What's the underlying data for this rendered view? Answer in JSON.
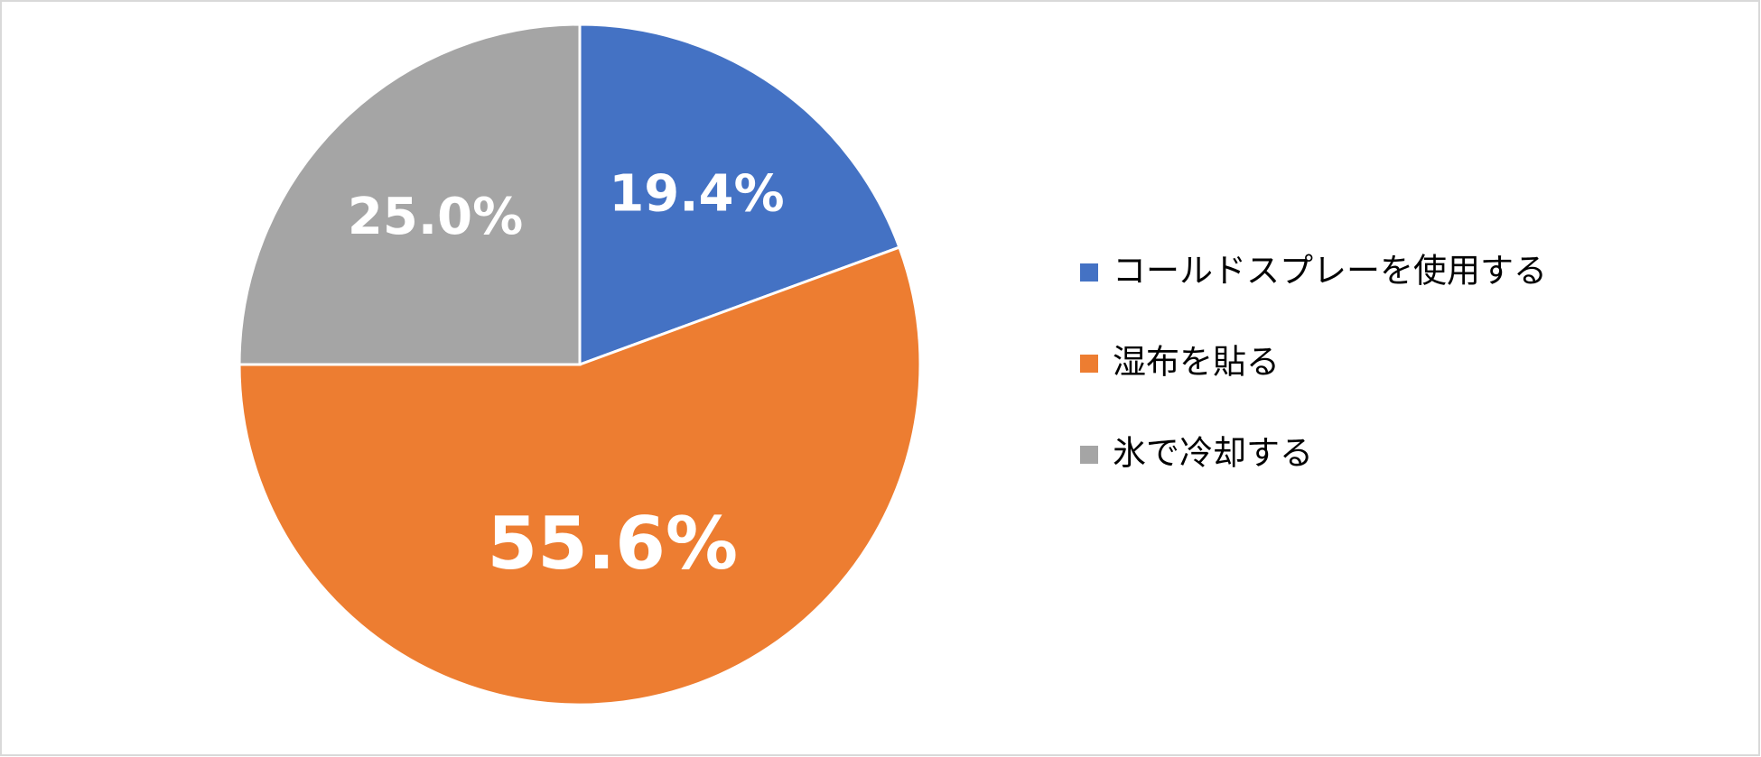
{
  "chart_data": {
    "type": "pie",
    "categories": [
      "コールドスプレーを使用する",
      "湿布を貼る",
      "氷で冷却する"
    ],
    "values": [
      19.4,
      55.6,
      25.0
    ],
    "value_labels": [
      "19.4%",
      "55.6%",
      "25.0%"
    ],
    "colors": [
      "#4472c4",
      "#ed7d31",
      "#a5a5a5"
    ],
    "legend": "right"
  }
}
